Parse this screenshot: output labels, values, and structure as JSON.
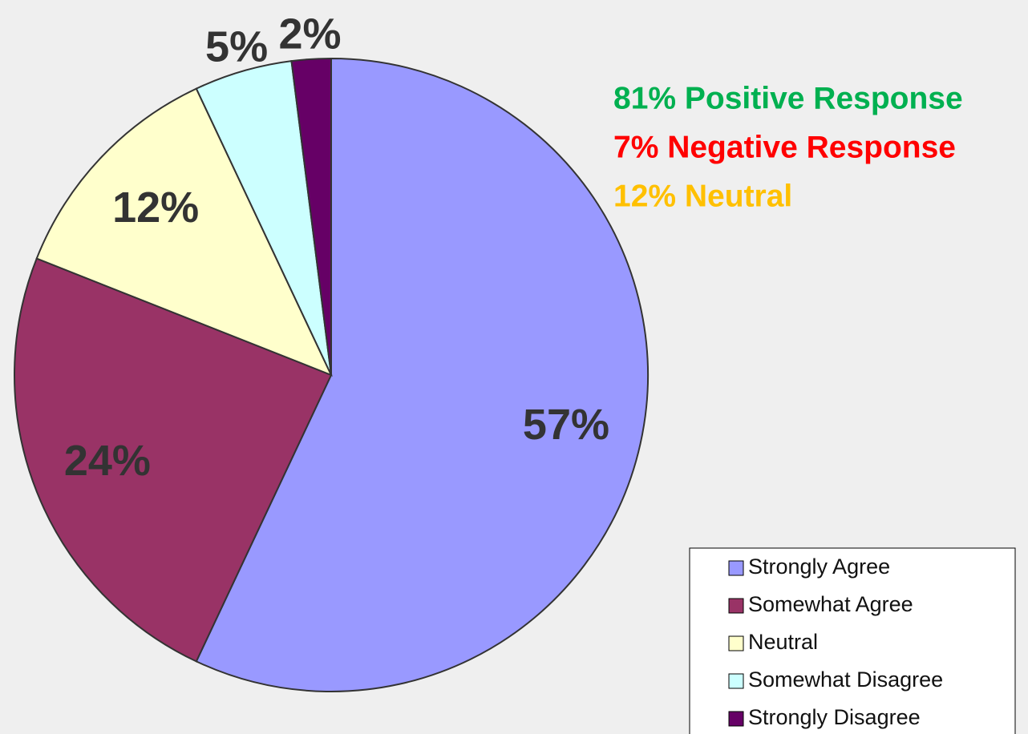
{
  "chart_data": {
    "type": "pie",
    "categories": [
      "Strongly Agree",
      "Somewhat Agree",
      "Neutral",
      "Somewhat Disagree",
      "Strongly Disagree"
    ],
    "values": [
      57,
      24,
      12,
      5,
      2
    ],
    "value_labels": [
      "57%",
      "24%",
      "12%",
      "5%",
      "2%"
    ],
    "colors": [
      "#9999ff",
      "#993366",
      "#ffffcc",
      "#ccffff",
      "#660066"
    ],
    "annotations": [
      {
        "text": "81% Positive Response",
        "color": "#00b050"
      },
      {
        "text": "7% Negative Response",
        "color": "#ff0000"
      },
      {
        "text": "12% Neutral",
        "color": "#ffc000"
      }
    ],
    "legend": "bottom-right"
  }
}
